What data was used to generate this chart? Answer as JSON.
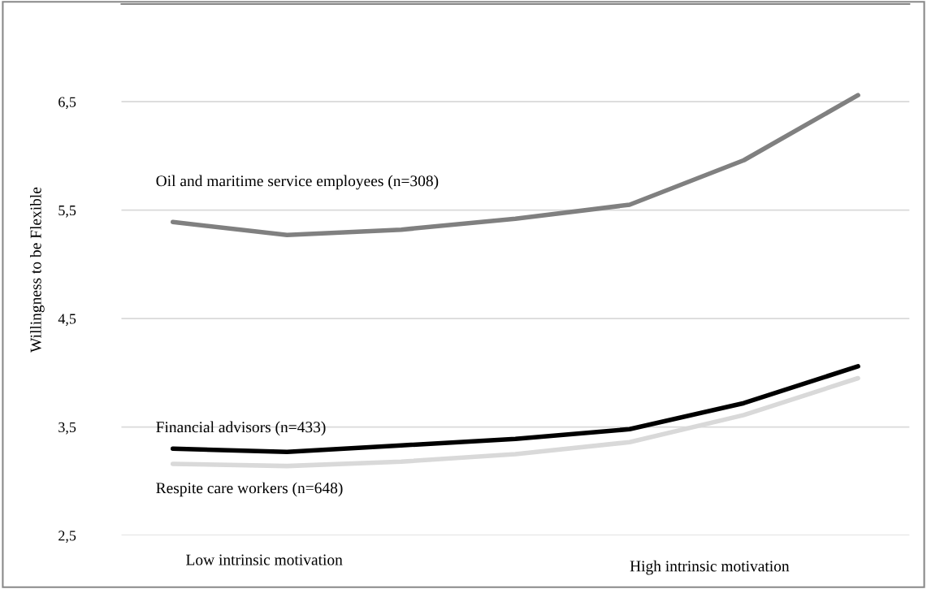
{
  "chart_data": {
    "type": "line",
    "ylabel": "Willingness to be Flexible",
    "categories": [
      null,
      null,
      null,
      null,
      null,
      null,
      null
    ],
    "series": [
      {
        "name": "Oil and maritime service employees (n=308)",
        "color": "#808080",
        "values": [
          5.39,
          5.27,
          5.32,
          5.42,
          5.55,
          5.96,
          6.56
        ]
      },
      {
        "name": "Financial advisors (n=433)",
        "color": "#000000",
        "values": [
          3.3,
          3.27,
          3.33,
          3.39,
          3.48,
          3.72,
          4.06
        ]
      },
      {
        "name": "Respite care workers (n=648)",
        "color": "#d9d9d9",
        "values": [
          3.16,
          3.14,
          3.18,
          3.25,
          3.36,
          3.61,
          3.95
        ]
      }
    ],
    "ylim": [
      2.5,
      7.4
    ],
    "yticks": [
      {
        "value": 2.5,
        "label": "2,5"
      },
      {
        "value": 3.5,
        "label": "3,5"
      },
      {
        "value": 4.5,
        "label": "4,5"
      },
      {
        "value": 5.5,
        "label": "5,5"
      },
      {
        "value": 6.5,
        "label": "6,5"
      }
    ],
    "annotations": [
      "Low intrinsic motivation",
      "High intrinsic motivation"
    ],
    "grid": "y",
    "legend": false,
    "marker": "none",
    "line_style": "solid"
  }
}
